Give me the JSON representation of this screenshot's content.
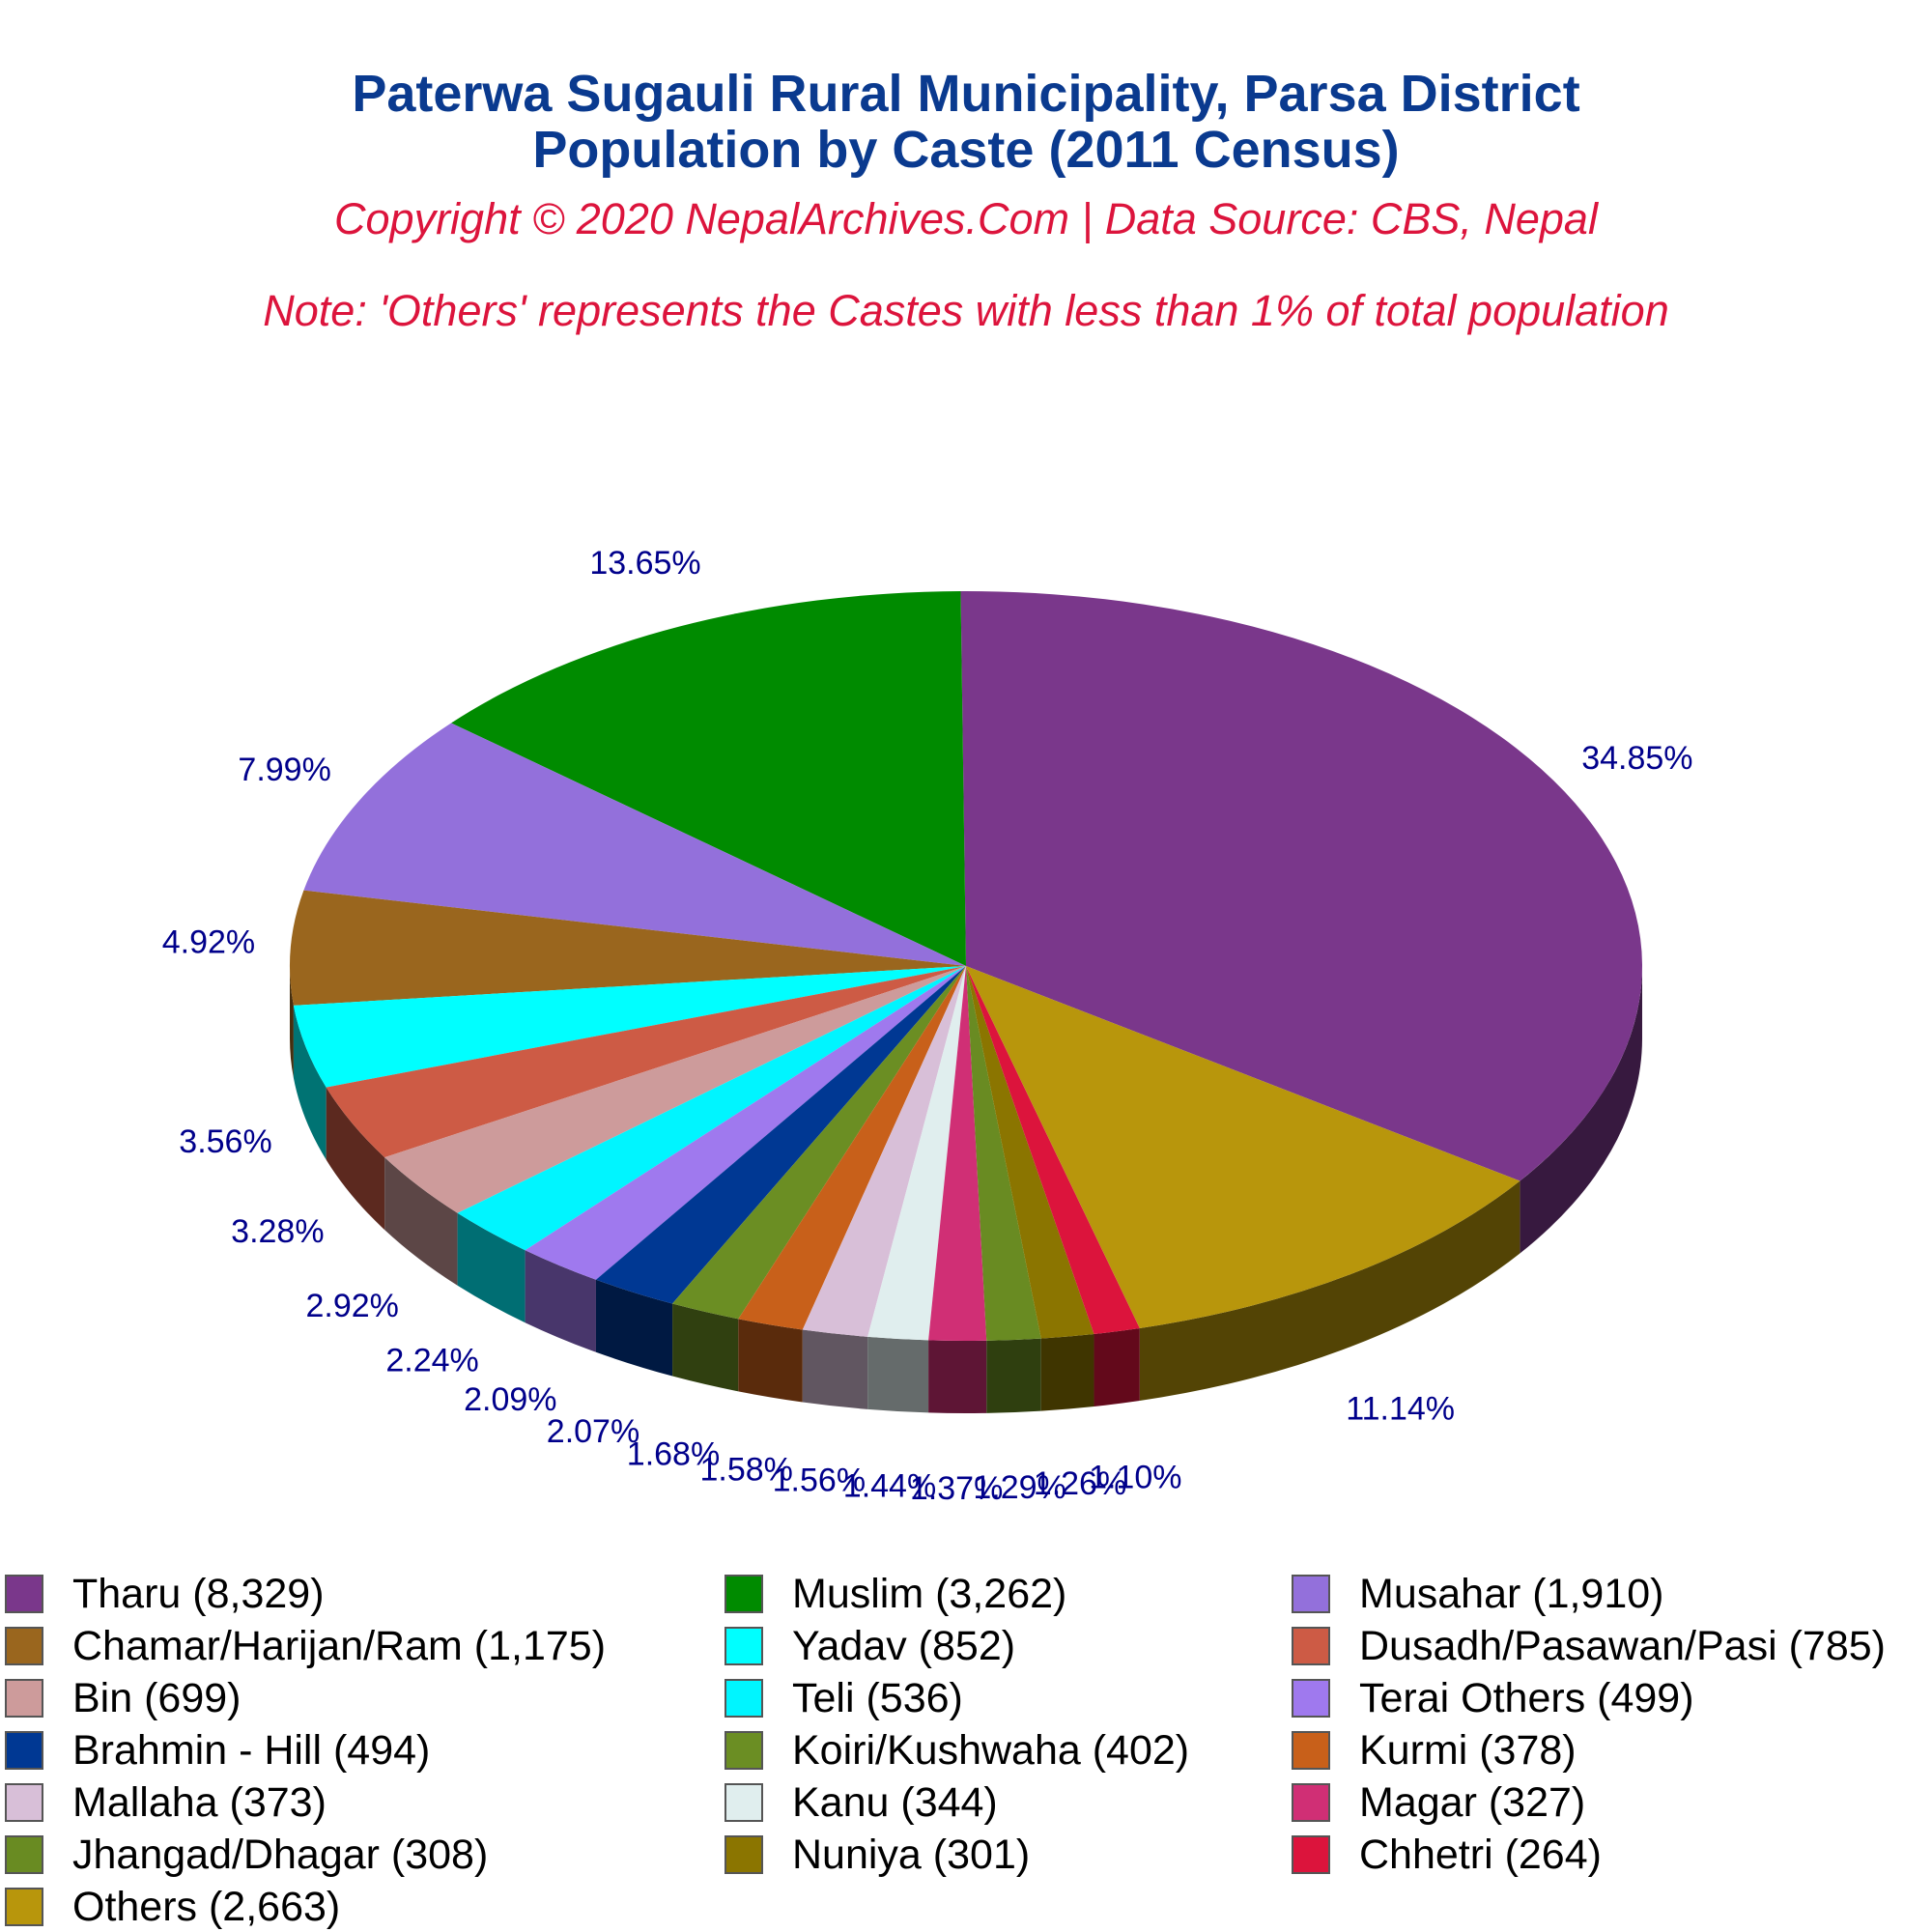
{
  "title_line1": "Paterwa Sugauli Rural Municipality, Parsa District",
  "title_line2": "Population by Caste (2011 Census)",
  "copyright": "Copyright © 2020 NepalArchives.Com | Data Source: CBS, Nepal",
  "note": "Note: 'Others' represents the Castes with less than 1% of total population",
  "chart_data": {
    "type": "pie",
    "style": "3d",
    "legend_position": "bottom",
    "slices": [
      {
        "label": "Tharu (8,329)",
        "name": "Tharu",
        "value": 8329,
        "percent_label": "34.85%",
        "color": "#7a378b"
      },
      {
        "label": "Muslim (3,262)",
        "name": "Muslim",
        "value": 3262,
        "percent_label": "13.65%",
        "color": "#008b00"
      },
      {
        "label": "Musahar (1,910)",
        "name": "Musahar",
        "value": 1910,
        "percent_label": "7.99%",
        "color": "#9370db"
      },
      {
        "label": "Chamar/Harijan/Ram (1,175)",
        "name": "Chamar/Harijan/Ram",
        "value": 1175,
        "percent_label": "4.92%",
        "color": "#9a661e"
      },
      {
        "label": "Yadav (852)",
        "name": "Yadav",
        "value": 852,
        "percent_label": "3.56%",
        "color": "#00ffff"
      },
      {
        "label": "Dusadh/Pasawan/Pasi (785)",
        "name": "Dusadh/Pasawan/Pasi",
        "value": 785,
        "percent_label": "3.28%",
        "color": "#cd5b45"
      },
      {
        "label": "Bin (699)",
        "name": "Bin",
        "value": 699,
        "percent_label": "2.92%",
        "color": "#cd9b9b"
      },
      {
        "label": "Teli (536)",
        "name": "Teli",
        "value": 536,
        "percent_label": "2.24%",
        "color": "#00f5ff"
      },
      {
        "label": "Terai Others (499)",
        "name": "Terai Others",
        "value": 499,
        "percent_label": "2.09%",
        "color": "#9f79ee"
      },
      {
        "label": "Brahmin - Hill (494)",
        "name": "Brahmin - Hill",
        "value": 494,
        "percent_label": "2.07%",
        "color": "#003893"
      },
      {
        "label": "Koiri/Kushwaha (402)",
        "name": "Koiri/Kushwaha",
        "value": 402,
        "percent_label": "1.68%",
        "color": "#6b8e23"
      },
      {
        "label": "Kurmi (378)",
        "name": "Kurmi",
        "value": 378,
        "percent_label": "1.58%",
        "color": "#c8601a"
      },
      {
        "label": "Mallaha (373)",
        "name": "Mallaha",
        "value": 373,
        "percent_label": "1.56%",
        "color": "#d8bfd8"
      },
      {
        "label": "Kanu (344)",
        "name": "Kanu",
        "value": 344,
        "percent_label": "1.44%",
        "color": "#e0eeee"
      },
      {
        "label": "Magar (327)",
        "name": "Magar",
        "value": 327,
        "percent_label": "1.37%",
        "color": "#d02f75"
      },
      {
        "label": "Jhangad/Dhagar (308)",
        "name": "Jhangad/Dhagar",
        "value": 308,
        "percent_label": "1.29%",
        "color": "#698b22"
      },
      {
        "label": "Nuniya (301)",
        "name": "Nuniya",
        "value": 301,
        "percent_label": "1.26%",
        "color": "#8b7500"
      },
      {
        "label": "Chhetri (264)",
        "name": "Chhetri",
        "value": 264,
        "percent_label": "1.10%",
        "color": "#dc143c"
      },
      {
        "label": "Others (2,663)",
        "name": "Others",
        "value": 2663,
        "percent_label": "11.14%",
        "color": "#b8960c"
      }
    ],
    "legend_order": [
      "Tharu (8,329)",
      "Muslim (3,262)",
      "Musahar (1,910)",
      "Chamar/Harijan/Ram (1,175)",
      "Yadav (852)",
      "Dusadh/Pasawan/Pasi (785)",
      "Bin (699)",
      "Teli (536)",
      "Terai Others (499)",
      "Brahmin - Hill (494)",
      "Koiri/Kushwaha (402)",
      "Kurmi (378)",
      "Mallaha (373)",
      "Kanu (344)",
      "Magar (327)",
      "Jhangad/Dhagar (308)",
      "Nuniya (301)",
      "Chhetri (264)",
      "Others (2,663)"
    ]
  }
}
